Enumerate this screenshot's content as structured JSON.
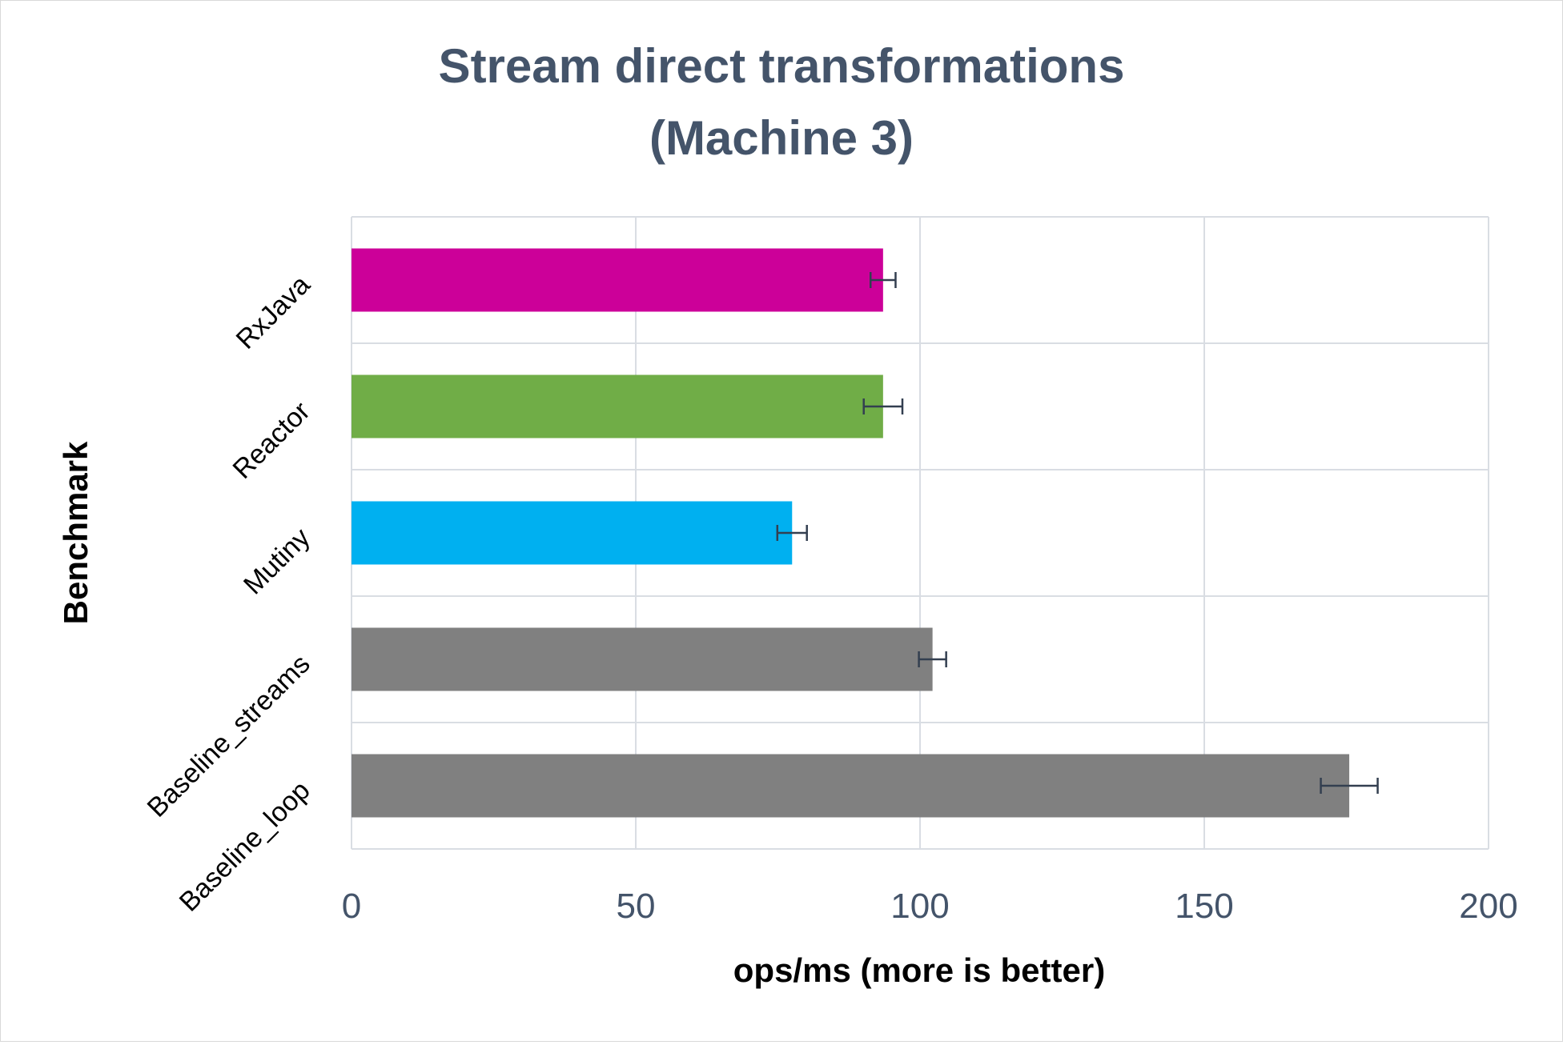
{
  "chart_data": {
    "type": "bar",
    "orientation": "horizontal",
    "title_line1": "Stream direct transformations",
    "title_line2": "(Machine 3)",
    "xlabel": "ops/ms (more is better)",
    "ylabel": "Benchmark",
    "xlim": [
      0,
      200
    ],
    "xticks": [
      "0",
      "50",
      "100",
      "150",
      "200"
    ],
    "grid": true,
    "categories": [
      "RxJava",
      "Reactor",
      "Mutiny",
      "Baseline_streams",
      "Baseline_loop"
    ],
    "values": [
      93.5,
      93.5,
      77.5,
      102.2,
      175.5
    ],
    "error": [
      2.2,
      3.4,
      2.6,
      2.4,
      5.0
    ],
    "colors": [
      "#cc0099",
      "#70ad47",
      "#00b0f0",
      "#808080",
      "#808080"
    ],
    "errorbar_color": "#333f50",
    "grid_color": "#d9dde3"
  }
}
